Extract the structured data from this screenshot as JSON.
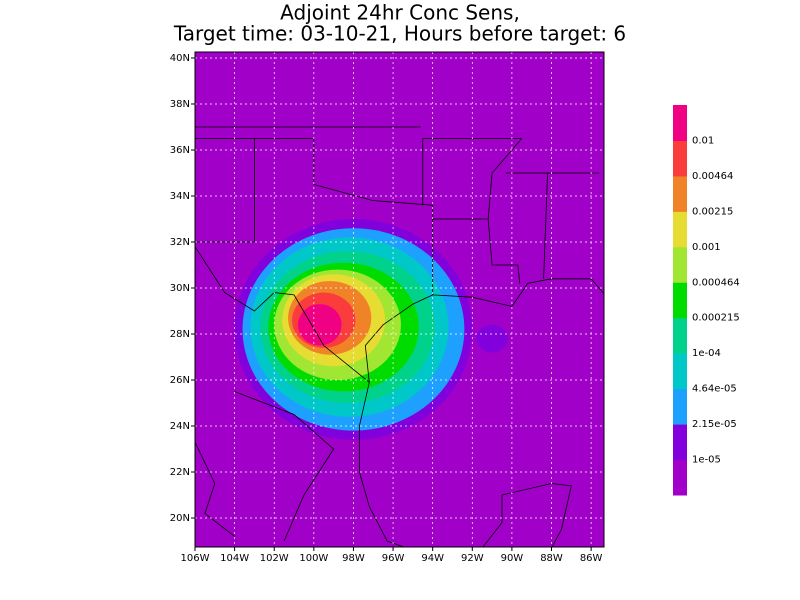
{
  "chart_data": {
    "type": "contour-map",
    "title": [
      "Adjoint 24hr Conc Sens,",
      "Target time: 03-10-21, Hours before target: 6"
    ],
    "xlim": [
      -106,
      -85.35
    ],
    "ylim": [
      18.74,
      40.26
    ],
    "xticks": [
      {
        "value": -106,
        "label": "106W"
      },
      {
        "value": -104,
        "label": "104W"
      },
      {
        "value": -102,
        "label": "102W"
      },
      {
        "value": -100,
        "label": "100W"
      },
      {
        "value": -98,
        "label": "98W"
      },
      {
        "value": -96,
        "label": "96W"
      },
      {
        "value": -94,
        "label": "94W"
      },
      {
        "value": -92,
        "label": "92W"
      },
      {
        "value": -90,
        "label": "90W"
      },
      {
        "value": -88,
        "label": "88W"
      },
      {
        "value": -86,
        "label": "86W"
      }
    ],
    "yticks": [
      {
        "value": 20,
        "label": "20N"
      },
      {
        "value": 22,
        "label": "22N"
      },
      {
        "value": 24,
        "label": "24N"
      },
      {
        "value": 26,
        "label": "26N"
      },
      {
        "value": 28,
        "label": "28N"
      },
      {
        "value": 30,
        "label": "30N"
      },
      {
        "value": 32,
        "label": "32N"
      },
      {
        "value": 34,
        "label": "34N"
      },
      {
        "value": 36,
        "label": "36N"
      },
      {
        "value": 38,
        "label": "38N"
      },
      {
        "value": 40,
        "label": "40N"
      }
    ],
    "grid": true,
    "colorbar": {
      "levels": [
        {
          "value": 1e-05,
          "label": "1e-05"
        },
        {
          "value": 2.15e-05,
          "label": "2.15e-05"
        },
        {
          "value": 4.64e-05,
          "label": "4.64e-05"
        },
        {
          "value": 0.0001,
          "label": "1e-04"
        },
        0.000215,
        0.000464,
        0.001,
        0.00215,
        0.00464,
        0.01
      ],
      "colors": [
        "#a000c8",
        "#8200dc",
        "#1ea0ff",
        "#00c8c8",
        "#00d28c",
        "#00dc00",
        "#a0e632",
        "#e6dc32",
        "#f08228",
        "#fa3c3c",
        "#f00082"
      ]
    }
  }
}
